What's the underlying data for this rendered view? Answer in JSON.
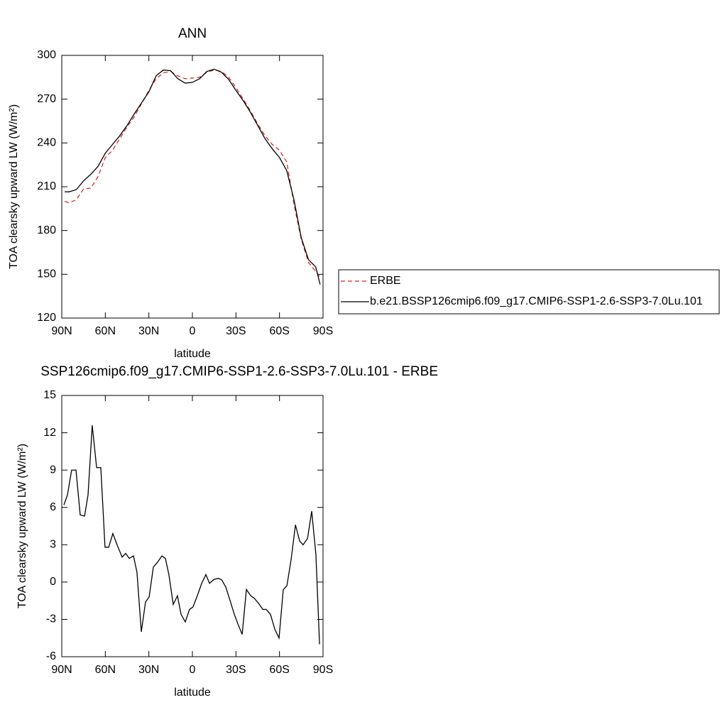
{
  "chart_data": [
    {
      "type": "line",
      "title": "ANN",
      "xlabel": "latitude",
      "ylabel": "TOA clearsky upward LW (W/m²)",
      "x": [
        88,
        85,
        80,
        75,
        70,
        65,
        60,
        55,
        50,
        45,
        40,
        35,
        30,
        25,
        20,
        15,
        10,
        5,
        0,
        -5,
        -10,
        -15,
        -20,
        -25,
        -30,
        -35,
        -40,
        -45,
        -50,
        -55,
        -60,
        -65,
        -70,
        -75,
        -80,
        -85,
        -88
      ],
      "series": [
        {
          "name": "ERBE",
          "color": "#d62728",
          "style": "dashed",
          "values": [
            200,
            199,
            201,
            208.5,
            209,
            217,
            230,
            235,
            243,
            251,
            258,
            267,
            276,
            284,
            288,
            289,
            286,
            284,
            284.5,
            285,
            288.5,
            290,
            289,
            285,
            278,
            270,
            262,
            253,
            245,
            239,
            235,
            227,
            198,
            174,
            158,
            152,
            148
          ]
        },
        {
          "name": "b.e21.BSSP126cmip6.f09_g17.CMIP6-SSP1-2.6-SSP3-7.0Lu.101",
          "color": "#000000",
          "style": "solid",
          "values": [
            206.5,
            206.5,
            208,
            214,
            218.5,
            224,
            233,
            239,
            245,
            252,
            260,
            267.5,
            275,
            286,
            290,
            289.5,
            284,
            281,
            281.5,
            284,
            289,
            290.5,
            288.5,
            283.5,
            276,
            269,
            261,
            252,
            243,
            236,
            230,
            221,
            201,
            175,
            160,
            155,
            143
          ]
        }
      ],
      "xlim": [
        90,
        -90
      ],
      "xticks": [
        {
          "value": 90,
          "label": "90N"
        },
        {
          "value": 60,
          "label": "60N"
        },
        {
          "value": 30,
          "label": "30N"
        },
        0,
        {
          "value": -30,
          "label": "30S"
        },
        {
          "value": -60,
          "label": "60S"
        },
        {
          "value": -90,
          "label": "90S"
        }
      ],
      "ylim": [
        120,
        300
      ],
      "yticks": [
        120,
        150,
        180,
        210,
        240,
        270,
        300
      ]
    },
    {
      "type": "line",
      "title": "SSP126cmip6.f09_g17.CMIP6-SSP1-2.6-SSP3-7.0Lu.101 - ERBE",
      "xlabel": "latitude",
      "ylabel": "TOA clearsky upward LW (W/m²)",
      "x": [
        88.5,
        86.1,
        83.2,
        80.2,
        77.3,
        74.3,
        71.9,
        69.0,
        66.0,
        63.1,
        60.2,
        57.7,
        54.8,
        51.9,
        48.4,
        46.0,
        43.5,
        40.6,
        38.2,
        35.2,
        32.3,
        29.8,
        26.9,
        24.0,
        21.0,
        18.6,
        16.2,
        13.2,
        10.3,
        7.8,
        4.9,
        2.0,
        -0.4,
        -3.4,
        -6.4,
        -9.3,
        -11.8,
        -14.7,
        -17.6,
        -20.1,
        -23.0,
        -26.0,
        -28.9,
        -31.8,
        -34.3,
        -37.2,
        -40.2,
        -42.6,
        -45.5,
        -48.5,
        -50.9,
        -53.8,
        -56.8,
        -59.7,
        -62.6,
        -65.1,
        -68.0,
        -71.0,
        -73.9,
        -76.3,
        -79.3,
        -82.2,
        -85.1,
        -87.6
      ],
      "series": [
        {
          "color": "#000000",
          "style": "solid",
          "values": [
            6.2,
            7,
            9,
            9,
            5.4,
            5.3,
            7,
            12.6,
            9.2,
            9.2,
            2.8,
            2.8,
            3.9,
            3,
            2,
            2.3,
            1.9,
            2.1,
            0.8,
            -4,
            -1.6,
            -1.2,
            1.2,
            1.6,
            2.1,
            1.9,
            0.6,
            -1.8,
            -1.1,
            -2.6,
            -3.2,
            -2.2,
            -2,
            -1.1,
            -0.1,
            0.6,
            -0.1,
            0.2,
            0.3,
            0.2,
            -0.4,
            -1.5,
            -2.6,
            -3.5,
            -4.2,
            -0.6,
            -1.1,
            -1.3,
            -1.7,
            -2.2,
            -2.2,
            -2.6,
            -3.8,
            -4.5,
            -0.6,
            -0.3,
            1.8,
            4.6,
            3.3,
            3,
            3.5,
            5.7,
            2.2,
            -5
          ]
        }
      ],
      "xlim": [
        90,
        -90
      ],
      "xticks": [
        {
          "value": 90,
          "label": "90N"
        },
        {
          "value": 60,
          "label": "60N"
        },
        {
          "value": 30,
          "label": "30N"
        },
        0,
        {
          "value": -30,
          "label": "30S"
        },
        {
          "value": -60,
          "label": "60S"
        },
        {
          "value": -90,
          "label": "90S"
        }
      ],
      "ylim": [
        -6,
        15
      ],
      "yticks": [
        -6,
        -3,
        0,
        3,
        6,
        9,
        12,
        15
      ]
    }
  ]
}
